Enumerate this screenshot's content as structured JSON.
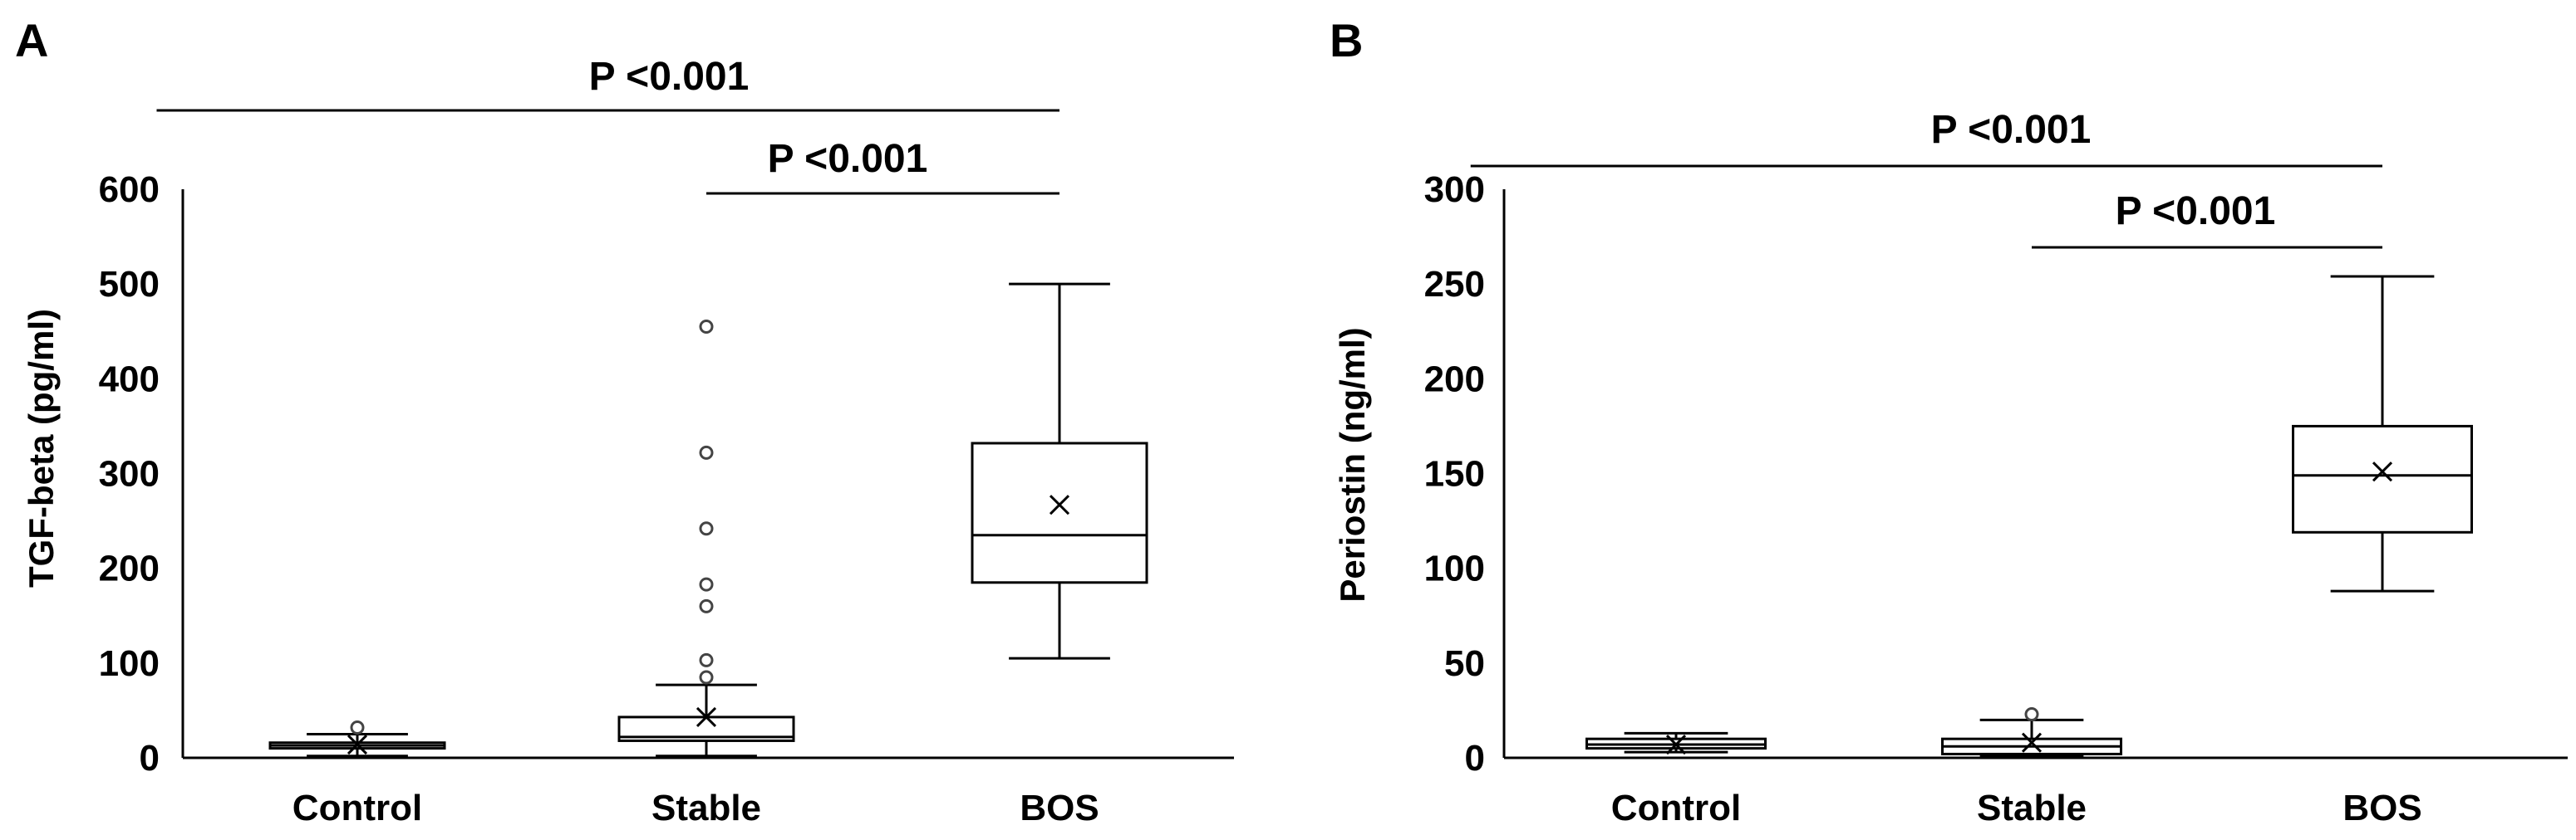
{
  "chart_data": [
    {
      "panel": "A",
      "type": "box",
      "ylabel": "TGF-beta (pg/ml)",
      "ylim": [
        0,
        600
      ],
      "yticks": [
        0,
        100,
        200,
        300,
        400,
        500,
        600
      ],
      "categories": [
        "Control",
        "Stable",
        "BOS"
      ],
      "boxes": [
        {
          "category": "Control",
          "min": 2,
          "q1": 10,
          "median": 13,
          "q3": 16,
          "max": 25,
          "mean": 14,
          "outliers": [
            32
          ]
        },
        {
          "category": "Stable",
          "min": 2,
          "q1": 18,
          "median": 22,
          "q3": 43,
          "max": 77,
          "mean": 43,
          "outliers": [
            85,
            103,
            160,
            183,
            242,
            322,
            455
          ]
        },
        {
          "category": "BOS",
          "min": 105,
          "q1": 185,
          "median": 235,
          "q3": 332,
          "max": 500,
          "mean": 267,
          "outliers": []
        }
      ],
      "comparisons": [
        {
          "from": "Control",
          "to": "BOS",
          "label": "P <0.001"
        },
        {
          "from": "Stable",
          "to": "BOS",
          "label": "P <0.001"
        }
      ]
    },
    {
      "panel": "B",
      "type": "box",
      "ylabel": "Periostin (ng/ml)",
      "ylim": [
        0,
        300
      ],
      "yticks": [
        0,
        50,
        100,
        150,
        200,
        250,
        300
      ],
      "categories": [
        "Control",
        "Stable",
        "BOS"
      ],
      "boxes": [
        {
          "category": "Control",
          "min": 3,
          "q1": 5,
          "median": 7,
          "q3": 10,
          "max": 13,
          "mean": 7,
          "outliers": []
        },
        {
          "category": "Stable",
          "min": 1,
          "q1": 2,
          "median": 6,
          "q3": 10,
          "max": 20,
          "mean": 8,
          "outliers": [
            23
          ]
        },
        {
          "category": "BOS",
          "min": 88,
          "q1": 119,
          "median": 149,
          "q3": 175,
          "max": 254,
          "mean": 151,
          "outliers": []
        }
      ],
      "comparisons": [
        {
          "from": "Control",
          "to": "BOS",
          "label": "P <0.001"
        },
        {
          "from": "Stable",
          "to": "BOS",
          "label": "P <0.001"
        }
      ]
    }
  ]
}
